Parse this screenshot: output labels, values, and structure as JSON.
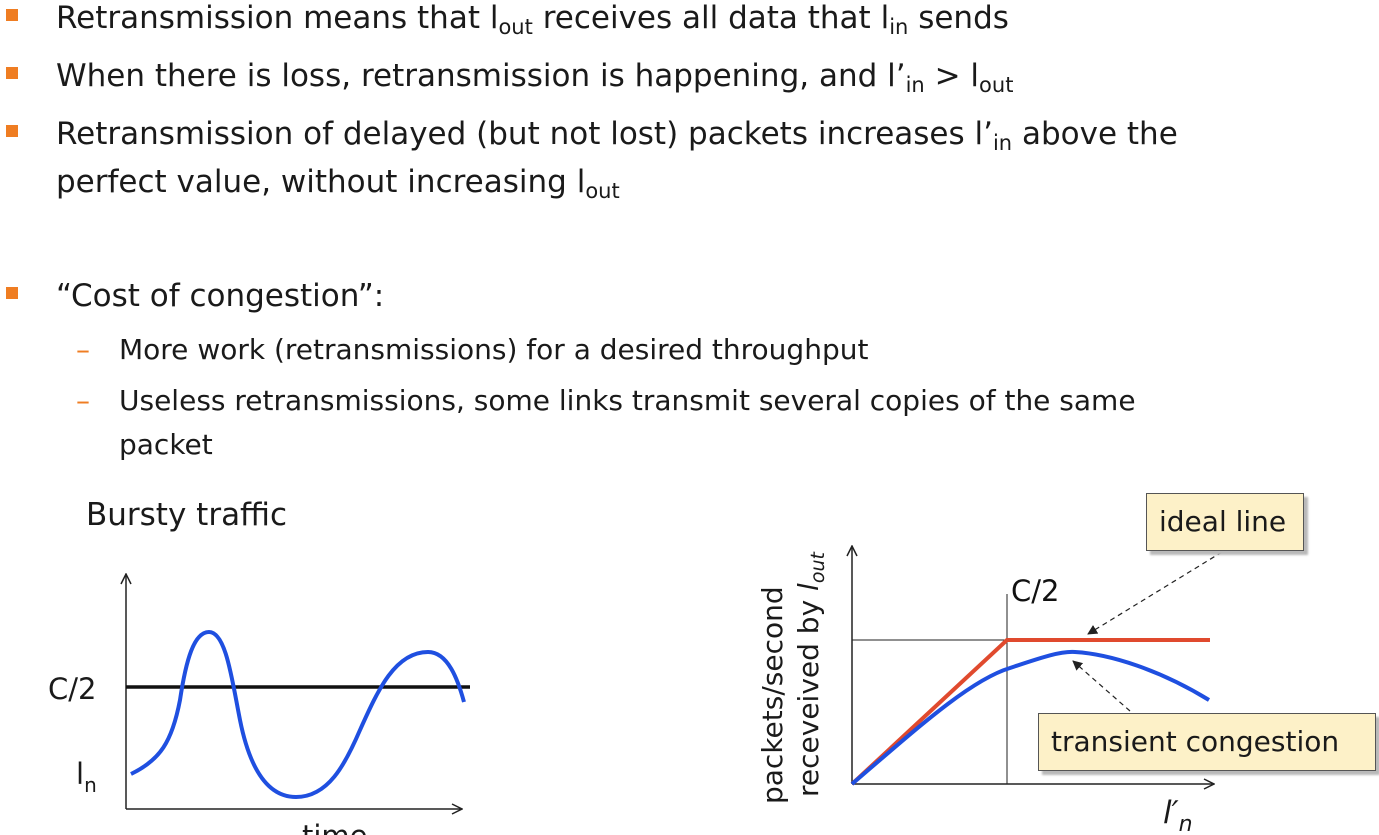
{
  "bullets": [
    {
      "p1": "Retransmission means that l",
      "s1": "out",
      "p2": " receives all data that l",
      "s2": "in",
      "p3": " sends"
    },
    {
      "p1": "When there is loss, retransmission is happening, and l’",
      "s1": "in",
      "p2": " > l",
      "s2": "out",
      "p3": ""
    },
    {
      "p1": "Retransmission of delayed (but not lost) packets increases l’",
      "s1": "in",
      "p2": " above the",
      "p3": "perfect value, without increasing l",
      "s3": "out"
    },
    {
      "p1": "“Cost of congestion”:"
    }
  ],
  "subbullets": [
    {
      "line1": "More work (retransmissions) for a desired throughput"
    },
    {
      "line1": "Useless retransmissions, some links transmit several copies of the same",
      "line2": "packet"
    }
  ],
  "left_chart": {
    "title": "Bursty traffic",
    "c_label": "C/2",
    "in_label": "l",
    "in_sub": "n",
    "x_label": "time"
  },
  "right_chart": {
    "c_label": "C/2",
    "y_label_line1": "packets/second",
    "y_label_line2": "receveived by ",
    "y_label_italic": "l",
    "y_label_sub": "out",
    "x_label": "l′",
    "x_label_sub": "n",
    "callout_ideal": "ideal line",
    "callout_transient": "transient congestion"
  },
  "colors": {
    "bullet": "#ef7d22",
    "ideal": "#e04a2e",
    "curve": "#1f4fe0",
    "callout_bg": "#fdf1c8"
  }
}
